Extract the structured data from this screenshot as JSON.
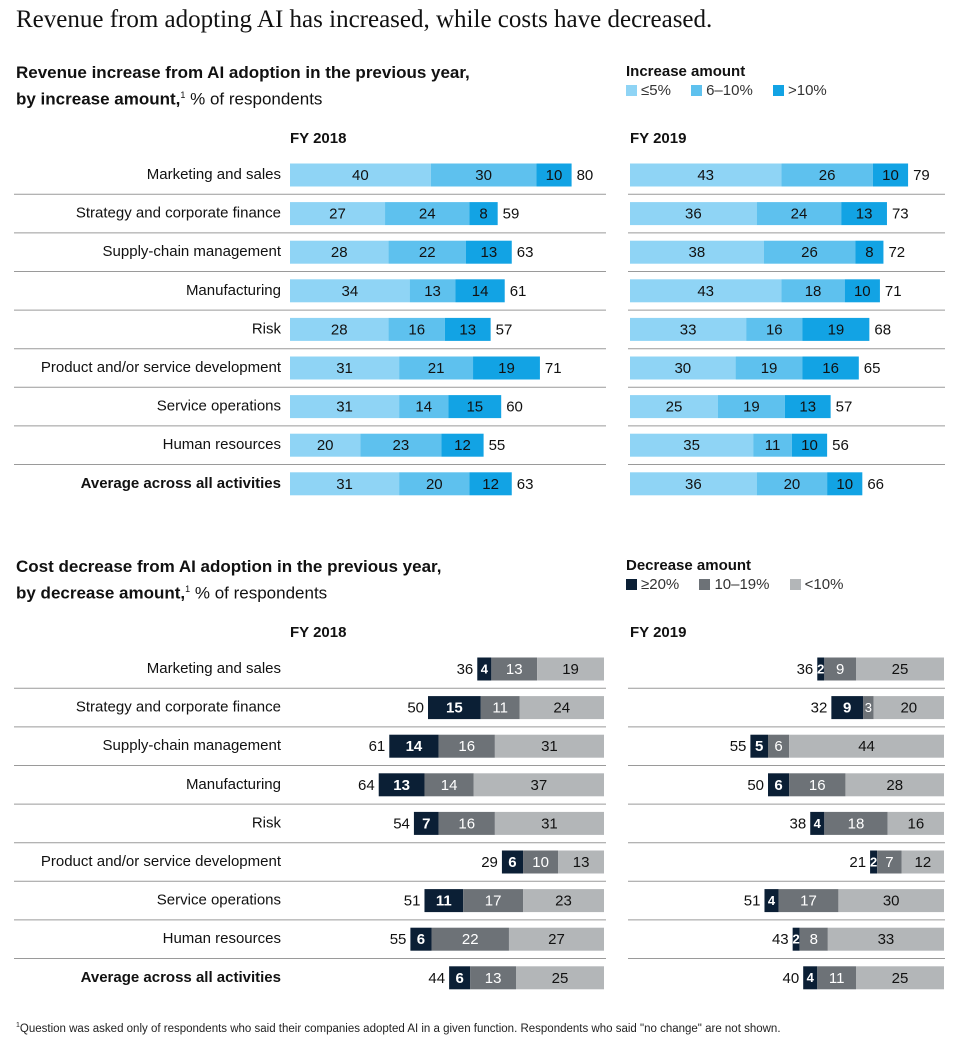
{
  "title": "Revenue from adopting AI has increased, while costs have decreased.",
  "footnote_marker": "1",
  "footnote": "Question was asked only of respondents who said their companies adopted AI in a given function. Respondents who said \"no change\" are not shown.",
  "colors": {
    "rev_low": "#8fd4f5",
    "rev_mid": "#5ec1ee",
    "rev_high": "#12a3e4",
    "cost_high": "#0b1f35",
    "cost_mid": "#6d7277",
    "cost_low": "#b3b6b8"
  },
  "revenue": {
    "title_bold": "Revenue increase from AI adoption in the previous year, by increase amount,",
    "title_line1": "Revenue increase from AI adoption in the previous year,",
    "title_line2_bold": "by increase amount,",
    "title_marker": "1",
    "title_unit": " % of respondents",
    "legend_title": "Increase amount",
    "legend": [
      "≤5%",
      "6–10%",
      ">10%"
    ]
  },
  "cost": {
    "title_line1": "Cost decrease from AI adoption in the previous year,",
    "title_line2_bold": "by decrease amount,",
    "title_marker": "1",
    "title_unit": " % of respondents",
    "legend_title": "Decrease amount",
    "legend": [
      "≥20%",
      "10–19%",
      "<10%"
    ]
  },
  "panel_labels": [
    "FY 2018",
    "FY 2019"
  ],
  "chart_data": [
    {
      "type": "bar",
      "stacked": true,
      "orientation": "horizontal",
      "title": "Revenue increase from AI adoption in the previous year, by increase amount, % of respondents",
      "panel": "FY 2018",
      "categories": [
        "Marketing and sales",
        "Strategy and corporate finance",
        "Supply-chain management",
        "Manufacturing",
        "Risk",
        "Product and/or service development",
        "Service operations",
        "Human resources",
        "Average across all activities"
      ],
      "series": [
        {
          "name": "≤5%",
          "values": [
            40,
            27,
            28,
            34,
            28,
            31,
            31,
            20,
            31
          ]
        },
        {
          "name": "6–10%",
          "values": [
            30,
            24,
            22,
            13,
            16,
            21,
            14,
            23,
            20
          ]
        },
        {
          "name": ">10%",
          "values": [
            10,
            8,
            13,
            14,
            13,
            19,
            15,
            12,
            12
          ]
        }
      ],
      "totals": [
        80,
        59,
        63,
        61,
        57,
        71,
        60,
        55,
        63
      ]
    },
    {
      "type": "bar",
      "stacked": true,
      "orientation": "horizontal",
      "title": "Revenue increase from AI adoption in the previous year, by increase amount, % of respondents",
      "panel": "FY 2019",
      "categories": [
        "Marketing and sales",
        "Strategy and corporate finance",
        "Supply-chain management",
        "Manufacturing",
        "Risk",
        "Product and/or service development",
        "Service operations",
        "Human resources",
        "Average across all activities"
      ],
      "series": [
        {
          "name": "≤5%",
          "values": [
            43,
            36,
            38,
            43,
            33,
            30,
            25,
            35,
            36
          ]
        },
        {
          "name": "6–10%",
          "values": [
            26,
            24,
            26,
            18,
            16,
            19,
            19,
            11,
            20
          ]
        },
        {
          "name": ">10%",
          "values": [
            10,
            13,
            8,
            10,
            19,
            16,
            13,
            10,
            10
          ]
        }
      ],
      "totals": [
        79,
        73,
        72,
        71,
        68,
        65,
        57,
        56,
        66
      ]
    },
    {
      "type": "bar",
      "stacked": true,
      "orientation": "horizontal",
      "title": "Cost decrease from AI adoption in the previous year, by decrease amount, % of respondents",
      "panel": "FY 2018",
      "categories": [
        "Marketing and sales",
        "Strategy and corporate finance",
        "Supply-chain management",
        "Manufacturing",
        "Risk",
        "Product and/or service development",
        "Service operations",
        "Human resources",
        "Average across all activities"
      ],
      "series": [
        {
          "name": "≥20%",
          "values": [
            4,
            15,
            14,
            13,
            7,
            6,
            11,
            6,
            6
          ]
        },
        {
          "name": "10–19%",
          "values": [
            13,
            11,
            16,
            14,
            16,
            10,
            17,
            22,
            13
          ]
        },
        {
          "name": "<10%",
          "values": [
            19,
            24,
            31,
            37,
            31,
            13,
            23,
            27,
            25
          ]
        }
      ],
      "totals": [
        36,
        50,
        61,
        64,
        54,
        29,
        51,
        55,
        44
      ]
    },
    {
      "type": "bar",
      "stacked": true,
      "orientation": "horizontal",
      "title": "Cost decrease from AI adoption in the previous year, by decrease amount, % of respondents",
      "panel": "FY 2019",
      "categories": [
        "Marketing and sales",
        "Strategy and corporate finance",
        "Supply-chain management",
        "Manufacturing",
        "Risk",
        "Product and/or service development",
        "Service operations",
        "Human resources",
        "Average across all activities"
      ],
      "series": [
        {
          "name": "≥20%",
          "values": [
            2,
            9,
            5,
            6,
            4,
            2,
            4,
            2,
            4
          ]
        },
        {
          "name": "10–19%",
          "values": [
            9,
            3,
            6,
            16,
            18,
            7,
            17,
            8,
            11
          ]
        },
        {
          "name": "<10%",
          "values": [
            25,
            20,
            44,
            28,
            16,
            12,
            30,
            33,
            25
          ]
        }
      ],
      "totals": [
        36,
        32,
        55,
        50,
        38,
        21,
        51,
        43,
        40
      ]
    }
  ]
}
